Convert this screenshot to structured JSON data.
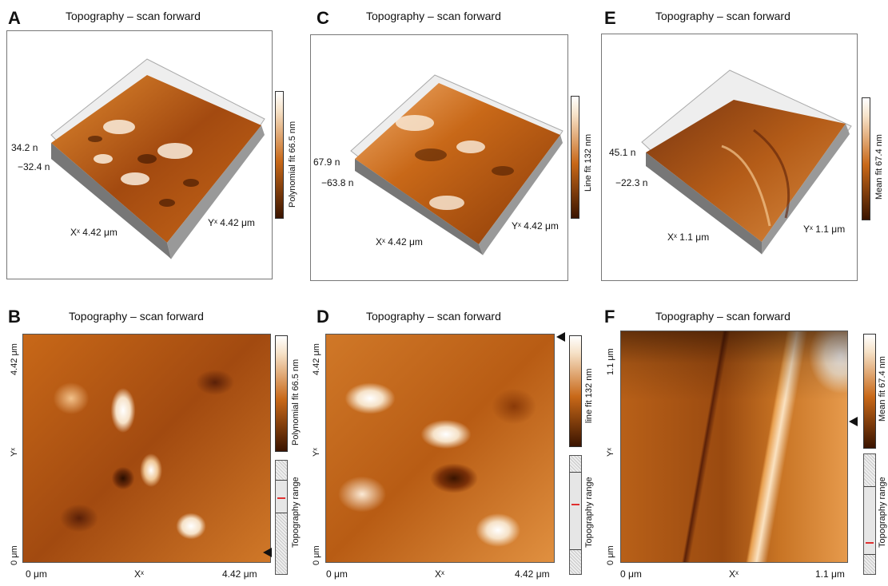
{
  "panels": {
    "A": {
      "letter": "A",
      "title": "Topography – scan forward",
      "colorbar": "Polynomial fit 66.5 nm",
      "z_top": "34.2 n",
      "z_bottom": "−32.4 n",
      "x_axis": "Xˣ 4.42 μm",
      "y_axis": "Yˣ 4.42 μm"
    },
    "C": {
      "letter": "C",
      "title": "Topography – scan forward",
      "colorbar": "Line fit 132 nm",
      "z_top": "67.9 n",
      "z_bottom": "−63.8 n",
      "x_axis": "Xˣ 4.42 μm",
      "y_axis": "Yˣ 4.42 μm"
    },
    "E": {
      "letter": "E",
      "title": "Topography – scan forward",
      "colorbar": "Mean fit 67.4 nm",
      "z_top": "45.1 n",
      "z_bottom": "−22.3 n",
      "x_axis": "Xˣ 1.1 μm",
      "y_axis": "Yˣ 1.1 μm"
    },
    "B": {
      "letter": "B",
      "title": "Topography – scan forward",
      "colorbar": "Polynomial fit 66.5 nm",
      "range": "Topography range",
      "y_top": "4.42 μm",
      "y_mid": "Yˣ",
      "y_bottom": "0 μm",
      "x_left": "0 μm",
      "x_mid": "Xˣ",
      "x_right": "4.42 μm"
    },
    "D": {
      "letter": "D",
      "title": "Topography – scan forward",
      "colorbar": "line fit 132 nm",
      "range": "Topography range",
      "y_top": "4.42 μm",
      "y_mid": "Yˣ",
      "y_bottom": "0 μm",
      "x_left": "0 μm",
      "x_mid": "Xˣ",
      "x_right": "4.42 μm"
    },
    "F": {
      "letter": "F",
      "title": "Topography – scan forward",
      "colorbar": "Mean fit 67.4 nm",
      "range": "Topography range",
      "y_top": "1.1 μm",
      "y_mid": "Yˣ",
      "y_bottom": "0 μm",
      "x_left": "0 μm",
      "x_mid": "Xˣ",
      "x_right": "1.1 μm"
    }
  },
  "colors": {
    "dark": "#3a1400",
    "mid": "#c86818",
    "light": "#f6e2c8",
    "white": "#ffffff"
  }
}
